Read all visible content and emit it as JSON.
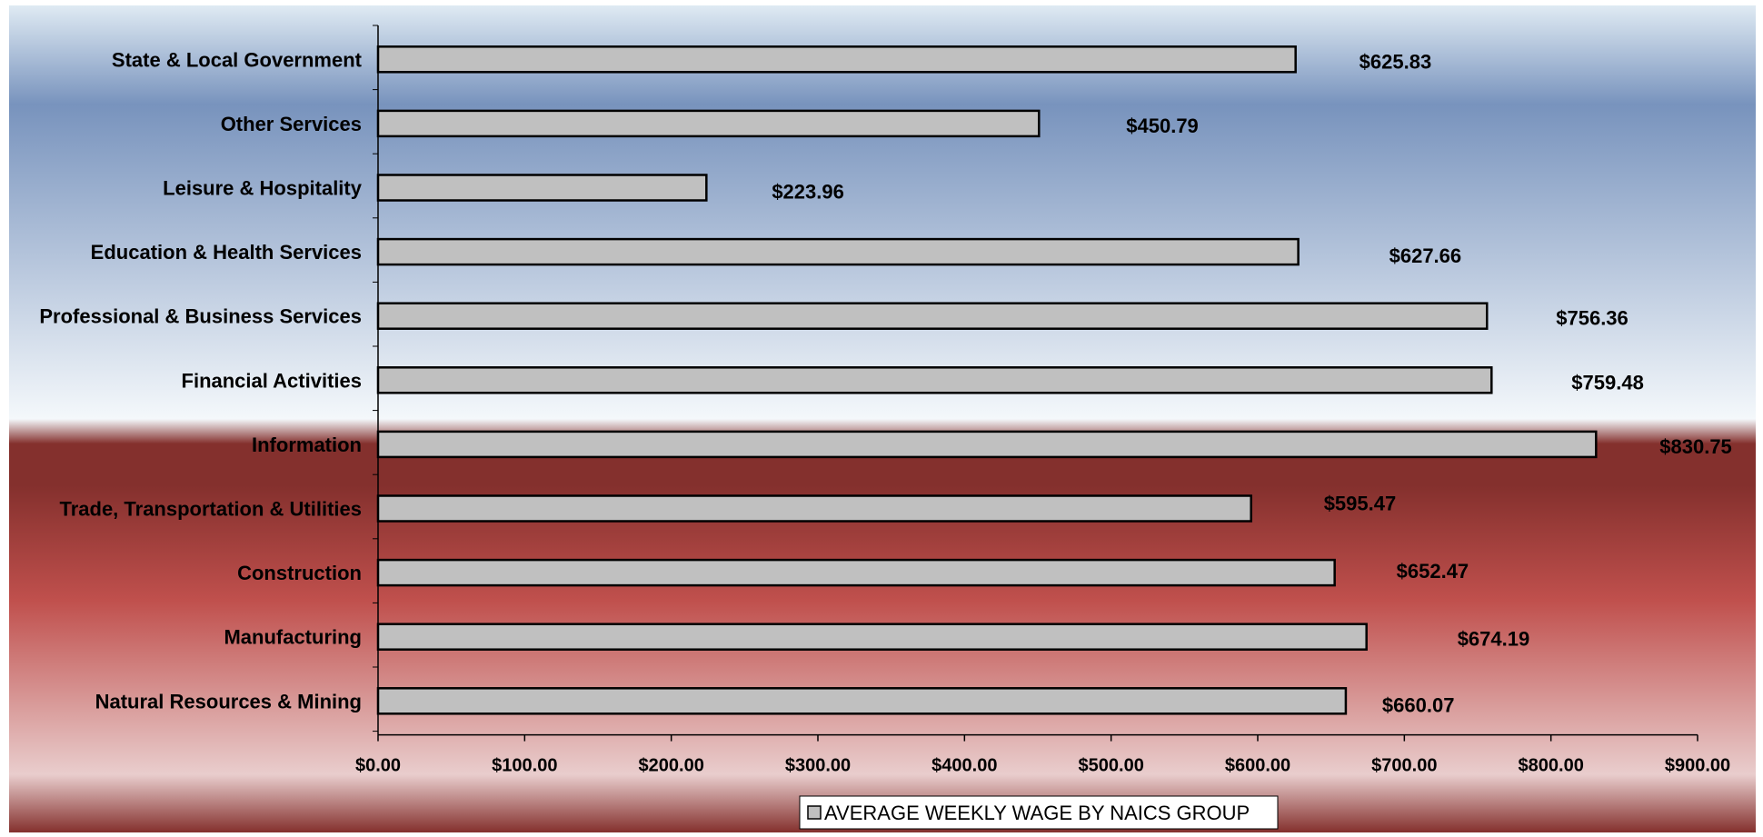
{
  "colors": {
    "bar_fill": "#c0c0c0",
    "bar_stroke": "#000000",
    "bg_top": "#dfeaf3",
    "bg_blue": "#7893bd",
    "bg_light": "#f4f8fb",
    "bg_dark_red": "#84302d",
    "bg_red": "#c0504d",
    "bg_pink": "#e9cdcd"
  },
  "chart_data": {
    "type": "bar",
    "orientation": "horizontal",
    "title": "",
    "xlabel": "",
    "ylabel": "",
    "categories": [
      "State & Local Government",
      "Other Services",
      "Leisure & Hospitality",
      "Education & Health Services",
      "Professional & Business Services",
      "Financial Activities",
      "Information",
      "Trade, Transportation & Utilities",
      "Construction",
      "Manufacturing",
      "Natural Resources & Mining"
    ],
    "series": [
      {
        "name": "AVERAGE WEEKLY WAGE BY NAICS GROUP",
        "values": [
          625.83,
          450.79,
          223.96,
          627.66,
          756.36,
          759.48,
          830.75,
          595.47,
          652.47,
          674.19,
          660.07
        ],
        "labels": [
          "$625.83",
          "$450.79",
          "$223.96",
          "$627.66",
          "$756.36",
          "$759.48",
          "$830.75",
          "$595.47",
          "$652.47",
          "$674.19",
          "$660.07"
        ]
      }
    ],
    "xlim": [
      0,
      900
    ],
    "x_ticks": [
      0,
      100,
      200,
      300,
      400,
      500,
      600,
      700,
      800,
      900
    ],
    "x_tick_labels": [
      "$0.00",
      "$100.00",
      "$200.00",
      "$300.00",
      "$400.00",
      "$500.00",
      "$600.00",
      "$700.00",
      "$800.00",
      "$900.00"
    ],
    "grid": false,
    "legend_position": "bottom-center"
  }
}
